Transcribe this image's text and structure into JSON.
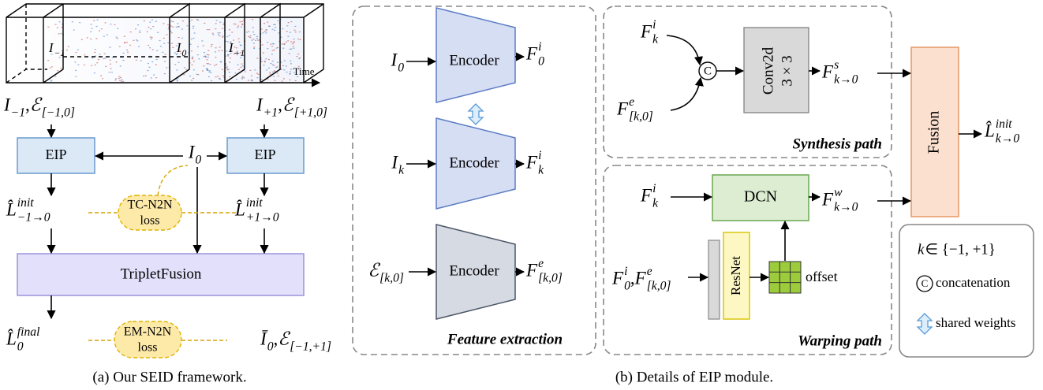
{
  "panel_a": {
    "time_label": "Time",
    "frame_labels": [
      [
        {
          "t": "I",
          "sub": "−1"
        }
      ],
      [
        {
          "t": "I",
          "sub": "0"
        }
      ],
      [
        {
          "t": "I",
          "sub": "+1"
        }
      ]
    ],
    "input_left": [
      {
        "t": "I",
        "sub": "−1"
      },
      {
        "r": ", "
      },
      {
        "t": "ℰ",
        "sub": "[−1,0]"
      }
    ],
    "input_right": [
      {
        "t": "I",
        "sub": "+1"
      },
      {
        "r": ", "
      },
      {
        "t": "ℰ",
        "sub": "[+1,0]"
      }
    ],
    "eip_left": "EIP",
    "eip_right": "EIP",
    "center_input": [
      {
        "t": "I",
        "sub": "0"
      }
    ],
    "tc_loss": [
      "TC-N2N",
      "loss"
    ],
    "init_left": [
      {
        "t": "L̂",
        "sup": "init",
        "sub": "−1→0"
      }
    ],
    "init_right": [
      {
        "t": "L̂",
        "sup": "init",
        "sub": "+1→0"
      }
    ],
    "fusion": "TripletFusion",
    "final_output": [
      {
        "t": "L̂",
        "sup": "final",
        "sub": "0"
      }
    ],
    "em_loss": [
      "EM-N2N",
      "loss"
    ],
    "target": [
      {
        "t": "Ī",
        "sub": "0"
      },
      {
        "r": ", "
      },
      {
        "t": "ℰ",
        "sub": "[−1,+1]"
      }
    ],
    "caption": "(a) Our SEID framework."
  },
  "panel_b": {
    "feature_extraction": {
      "title": "Feature extraction",
      "rows": [
        {
          "input": [
            {
              "t": "I",
              "sub": "0"
            }
          ],
          "encoder": "Encoder",
          "output": [
            {
              "t": "F",
              "sup": "i",
              "sub": "0"
            }
          ]
        },
        {
          "input": [
            {
              "t": "I",
              "sub": "k"
            }
          ],
          "encoder": "Encoder",
          "output": [
            {
              "t": "F",
              "sup": "i",
              "sub": "k"
            }
          ]
        },
        {
          "input": [
            {
              "t": "ℰ",
              "sub": "[k,0]"
            }
          ],
          "encoder": "Encoder",
          "output": [
            {
              "t": "F",
              "sup": "e",
              "sub": "[k,0]"
            }
          ]
        }
      ]
    },
    "synthesis": {
      "title": "Synthesis path",
      "input_i": [
        {
          "t": "F",
          "sup": "i",
          "sub": "k"
        }
      ],
      "input_e": [
        {
          "t": "F",
          "sup": "e",
          "sub": "[k,0]"
        }
      ],
      "concat_symbol": "C",
      "conv": [
        "Conv2d",
        "3 × 3"
      ],
      "output": [
        {
          "t": "F",
          "sup": "s",
          "sub": "k→0"
        }
      ]
    },
    "warping": {
      "title": "Warping path",
      "input_i": [
        {
          "t": "F",
          "sup": "i",
          "sub": "k"
        }
      ],
      "input_feat": [
        {
          "t": "F",
          "sup": "i",
          "sub": "0"
        },
        {
          "r": ", "
        },
        {
          "t": "F",
          "sup": "e",
          "sub": "[k,0]"
        }
      ],
      "dcn": "DCN",
      "resnet": "ResNet",
      "offset_label": "offset",
      "output": [
        {
          "t": "F",
          "sup": "w",
          "sub": "k→0"
        }
      ]
    },
    "fusion": "Fusion",
    "output": [
      {
        "t": "L̂",
        "sup": "init",
        "sub": "k→0"
      }
    ],
    "legend": {
      "domain": [
        {
          "t": "k"
        },
        {
          "r": " ∈ {−1, +1}"
        }
      ],
      "concat_symbol": "C",
      "concat_label": "concatenation",
      "shared_label": "shared weights"
    },
    "caption": "(b) Details of EIP module."
  }
}
